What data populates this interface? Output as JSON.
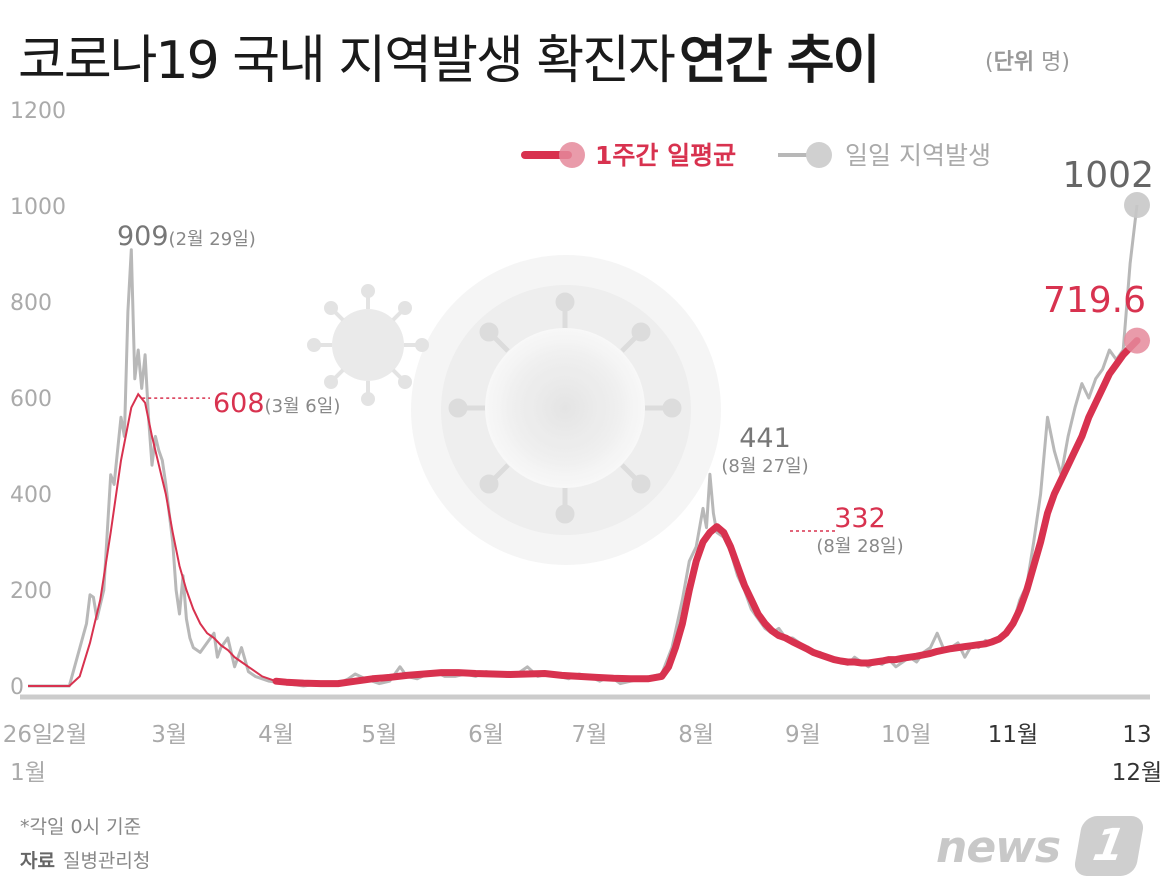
{
  "title": {
    "main": "코로나19 국내 지역발생 확진자",
    "bold": "연간 추이"
  },
  "unit": {
    "label": "단위",
    "value": "명"
  },
  "footnote": "*각일 0시 기준",
  "source": {
    "label": "자료",
    "value": "질병관리청"
  },
  "logo": {
    "text": "news",
    "badge": "1"
  },
  "colors": {
    "weekly": "#d8324f",
    "daily": "#b8b8b8",
    "axis": "#cccccc"
  },
  "chart_data": {
    "type": "line",
    "ylim": [
      0,
      1200
    ],
    "yticks": [
      0,
      200,
      400,
      600,
      800,
      1000,
      1200
    ],
    "xlim": [
      0,
      322
    ],
    "xticks": [
      {
        "t": 0,
        "label": "26일",
        "sub": "1월"
      },
      {
        "t": 12,
        "label": "2월"
      },
      {
        "t": 41,
        "label": "3월"
      },
      {
        "t": 72,
        "label": "4월"
      },
      {
        "t": 102,
        "label": "5월"
      },
      {
        "t": 133,
        "label": "6월"
      },
      {
        "t": 163,
        "label": "7월"
      },
      {
        "t": 194,
        "label": "8월"
      },
      {
        "t": 225,
        "label": "9월"
      },
      {
        "t": 255,
        "label": "10월"
      },
      {
        "t": 286,
        "label": "11월"
      },
      {
        "t": 322,
        "label": "13",
        "sub": "12월"
      }
    ],
    "legend": [
      "1주간 일평균",
      "일일 지역발생"
    ],
    "annotations": {
      "daily_peak1": {
        "value": "909",
        "note": "(2월 29일)"
      },
      "avg_peak1": {
        "value": "608",
        "note": "(3월 6일)"
      },
      "daily_peak2": {
        "value": "441",
        "note": "(8월 27일)"
      },
      "avg_peak2": {
        "value": "332",
        "note": "(8월 28일)"
      },
      "daily_last": {
        "value": "1002"
      },
      "avg_last": {
        "value": "719.6"
      }
    },
    "series": [
      {
        "name": "일일 지역발생",
        "points": [
          [
            0,
            0
          ],
          [
            12,
            0
          ],
          [
            17,
            130
          ],
          [
            18,
            190
          ],
          [
            19,
            185
          ],
          [
            20,
            140
          ],
          [
            22,
            200
          ],
          [
            24,
            440
          ],
          [
            25,
            420
          ],
          [
            27,
            560
          ],
          [
            28,
            520
          ],
          [
            29,
            780
          ],
          [
            30,
            909
          ],
          [
            31,
            640
          ],
          [
            32,
            700
          ],
          [
            33,
            620
          ],
          [
            34,
            690
          ],
          [
            35,
            560
          ],
          [
            36,
            460
          ],
          [
            37,
            520
          ],
          [
            38,
            490
          ],
          [
            39,
            470
          ],
          [
            40,
            420
          ],
          [
            41,
            360
          ],
          [
            42,
            300
          ],
          [
            43,
            200
          ],
          [
            44,
            150
          ],
          [
            45,
            230
          ],
          [
            46,
            140
          ],
          [
            47,
            100
          ],
          [
            48,
            80
          ],
          [
            50,
            70
          ],
          [
            52,
            90
          ],
          [
            54,
            110
          ],
          [
            55,
            60
          ],
          [
            56,
            80
          ],
          [
            58,
            100
          ],
          [
            60,
            40
          ],
          [
            62,
            80
          ],
          [
            64,
            30
          ],
          [
            66,
            20
          ],
          [
            70,
            10
          ],
          [
            75,
            5
          ],
          [
            80,
            0
          ],
          [
            85,
            5
          ],
          [
            90,
            5
          ],
          [
            93,
            15
          ],
          [
            95,
            25
          ],
          [
            98,
            15
          ],
          [
            100,
            10
          ],
          [
            102,
            5
          ],
          [
            105,
            10
          ],
          [
            108,
            40
          ],
          [
            110,
            20
          ],
          [
            113,
            15
          ],
          [
            116,
            25
          ],
          [
            118,
            30
          ],
          [
            121,
            20
          ],
          [
            124,
            20
          ],
          [
            127,
            25
          ],
          [
            130,
            20
          ],
          [
            133,
            30
          ],
          [
            136,
            25
          ],
          [
            139,
            20
          ],
          [
            142,
            25
          ],
          [
            145,
            40
          ],
          [
            148,
            20
          ],
          [
            151,
            25
          ],
          [
            154,
            20
          ],
          [
            157,
            15
          ],
          [
            160,
            25
          ],
          [
            163,
            20
          ],
          [
            166,
            10
          ],
          [
            169,
            20
          ],
          [
            172,
            5
          ],
          [
            175,
            10
          ],
          [
            178,
            15
          ],
          [
            181,
            20
          ],
          [
            184,
            25
          ],
          [
            187,
            80
          ],
          [
            190,
            180
          ],
          [
            192,
            260
          ],
          [
            194,
            290
          ],
          [
            196,
            370
          ],
          [
            197,
            330
          ],
          [
            198,
            441
          ],
          [
            199,
            360
          ],
          [
            200,
            320
          ],
          [
            202,
            310
          ],
          [
            204,
            280
          ],
          [
            206,
            230
          ],
          [
            208,
            200
          ],
          [
            210,
            160
          ],
          [
            212,
            140
          ],
          [
            214,
            120
          ],
          [
            216,
            110
          ],
          [
            218,
            120
          ],
          [
            220,
            100
          ],
          [
            222,
            100
          ],
          [
            224,
            90
          ],
          [
            226,
            80
          ],
          [
            228,
            70
          ],
          [
            230,
            70
          ],
          [
            232,
            60
          ],
          [
            234,
            55
          ],
          [
            236,
            50
          ],
          [
            238,
            45
          ],
          [
            240,
            60
          ],
          [
            242,
            50
          ],
          [
            244,
            40
          ],
          [
            246,
            50
          ],
          [
            248,
            45
          ],
          [
            250,
            55
          ],
          [
            252,
            40
          ],
          [
            254,
            50
          ],
          [
            256,
            60
          ],
          [
            258,
            50
          ],
          [
            260,
            70
          ],
          [
            262,
            80
          ],
          [
            264,
            110
          ],
          [
            266,
            75
          ],
          [
            268,
            80
          ],
          [
            270,
            90
          ],
          [
            272,
            60
          ],
          [
            274,
            85
          ],
          [
            276,
            80
          ],
          [
            278,
            95
          ],
          [
            280,
            90
          ],
          [
            282,
            100
          ],
          [
            284,
            110
          ],
          [
            286,
            130
          ],
          [
            288,
            180
          ],
          [
            290,
            210
          ],
          [
            292,
            300
          ],
          [
            294,
            400
          ],
          [
            296,
            560
          ],
          [
            298,
            490
          ],
          [
            300,
            440
          ],
          [
            302,
            520
          ],
          [
            304,
            580
          ],
          [
            306,
            630
          ],
          [
            308,
            600
          ],
          [
            310,
            640
          ],
          [
            312,
            660
          ],
          [
            314,
            700
          ],
          [
            316,
            680
          ],
          [
            318,
            700
          ],
          [
            320,
            880
          ],
          [
            322,
            1002
          ]
        ]
      },
      {
        "name": "1주간 일평균",
        "points": [
          [
            0,
            0
          ],
          [
            12,
            0
          ],
          [
            15,
            20
          ],
          [
            18,
            90
          ],
          [
            21,
            180
          ],
          [
            24,
            320
          ],
          [
            27,
            470
          ],
          [
            30,
            580
          ],
          [
            32,
            608
          ],
          [
            34,
            590
          ],
          [
            36,
            520
          ],
          [
            38,
            460
          ],
          [
            40,
            400
          ],
          [
            42,
            320
          ],
          [
            44,
            250
          ],
          [
            46,
            200
          ],
          [
            48,
            160
          ],
          [
            50,
            130
          ],
          [
            52,
            110
          ],
          [
            54,
            100
          ],
          [
            56,
            85
          ],
          [
            58,
            75
          ],
          [
            60,
            60
          ],
          [
            62,
            50
          ],
          [
            64,
            40
          ],
          [
            66,
            30
          ],
          [
            68,
            20
          ],
          [
            70,
            15
          ],
          [
            72,
            10
          ],
          [
            75,
            8
          ],
          [
            80,
            6
          ],
          [
            85,
            5
          ],
          [
            90,
            5
          ],
          [
            95,
            10
          ],
          [
            100,
            15
          ],
          [
            105,
            18
          ],
          [
            110,
            22
          ],
          [
            115,
            25
          ],
          [
            120,
            28
          ],
          [
            125,
            28
          ],
          [
            130,
            26
          ],
          [
            135,
            25
          ],
          [
            140,
            24
          ],
          [
            145,
            25
          ],
          [
            150,
            26
          ],
          [
            155,
            22
          ],
          [
            160,
            20
          ],
          [
            165,
            18
          ],
          [
            170,
            16
          ],
          [
            175,
            15
          ],
          [
            180,
            15
          ],
          [
            184,
            20
          ],
          [
            186,
            40
          ],
          [
            188,
            80
          ],
          [
            190,
            130
          ],
          [
            192,
            200
          ],
          [
            194,
            260
          ],
          [
            196,
            300
          ],
          [
            198,
            320
          ],
          [
            200,
            332
          ],
          [
            202,
            320
          ],
          [
            204,
            290
          ],
          [
            206,
            250
          ],
          [
            208,
            210
          ],
          [
            210,
            180
          ],
          [
            212,
            150
          ],
          [
            214,
            130
          ],
          [
            216,
            115
          ],
          [
            218,
            105
          ],
          [
            220,
            100
          ],
          [
            222,
            92
          ],
          [
            224,
            85
          ],
          [
            226,
            78
          ],
          [
            228,
            70
          ],
          [
            230,
            65
          ],
          [
            232,
            60
          ],
          [
            234,
            55
          ],
          [
            236,
            52
          ],
          [
            238,
            50
          ],
          [
            240,
            50
          ],
          [
            242,
            48
          ],
          [
            244,
            48
          ],
          [
            246,
            50
          ],
          [
            248,
            52
          ],
          [
            250,
            55
          ],
          [
            252,
            55
          ],
          [
            254,
            58
          ],
          [
            256,
            60
          ],
          [
            258,
            62
          ],
          [
            260,
            65
          ],
          [
            262,
            68
          ],
          [
            264,
            72
          ],
          [
            266,
            75
          ],
          [
            268,
            78
          ],
          [
            270,
            80
          ],
          [
            272,
            82
          ],
          [
            274,
            84
          ],
          [
            276,
            86
          ],
          [
            278,
            88
          ],
          [
            280,
            92
          ],
          [
            282,
            98
          ],
          [
            284,
            110
          ],
          [
            286,
            130
          ],
          [
            288,
            160
          ],
          [
            290,
            200
          ],
          [
            292,
            250
          ],
          [
            294,
            300
          ],
          [
            296,
            360
          ],
          [
            298,
            400
          ],
          [
            300,
            430
          ],
          [
            302,
            460
          ],
          [
            304,
            490
          ],
          [
            306,
            520
          ],
          [
            308,
            560
          ],
          [
            310,
            590
          ],
          [
            312,
            620
          ],
          [
            314,
            650
          ],
          [
            316,
            670
          ],
          [
            318,
            690
          ],
          [
            320,
            705
          ],
          [
            322,
            719.6
          ]
        ]
      }
    ]
  }
}
